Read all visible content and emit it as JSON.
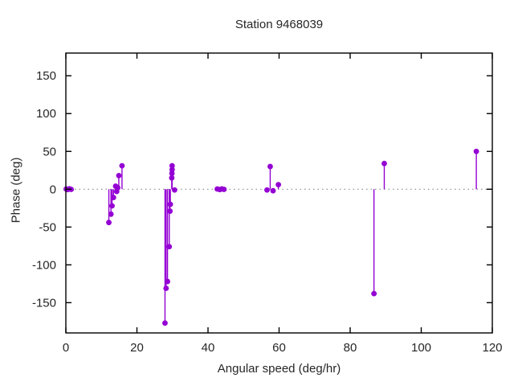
{
  "figure": {
    "title": "Station 9468039"
  },
  "chart_data": {
    "type": "scatter",
    "style": "impulses-with-points",
    "title": "Station 9468039",
    "xlabel": "Angular speed (deg/hr)",
    "ylabel": "Phase (deg)",
    "xlim": [
      0,
      120
    ],
    "ylim": [
      -190,
      180
    ],
    "xticks": [
      0,
      20,
      40,
      60,
      80,
      100,
      120
    ],
    "yticks": [
      -150,
      -100,
      -50,
      0,
      50,
      100,
      150
    ],
    "grid": false,
    "zero_line_dotted": true,
    "legend": "none",
    "colors": {
      "series": "#9400d3",
      "zero_line": "#8a8a8a",
      "axis": "#000000",
      "text": "#262626"
    },
    "points": [
      [
        0.1,
        0.3
      ],
      [
        0.5,
        -0.4
      ],
      [
        1.0,
        0.5
      ],
      [
        1.5,
        -0.2
      ],
      [
        12.1,
        -44
      ],
      [
        12.7,
        -33
      ],
      [
        13.0,
        -22
      ],
      [
        13.4,
        -11
      ],
      [
        14.0,
        4
      ],
      [
        14.3,
        -3
      ],
      [
        14.6,
        2
      ],
      [
        14.9,
        18
      ],
      [
        15.8,
        31
      ],
      [
        27.9,
        -177
      ],
      [
        28.2,
        -131
      ],
      [
        28.6,
        -122
      ],
      [
        29.1,
        -76
      ],
      [
        29.3,
        -29
      ],
      [
        29.4,
        -20
      ],
      [
        29.8,
        15
      ],
      [
        29.85,
        21
      ],
      [
        29.9,
        26
      ],
      [
        29.9,
        31
      ],
      [
        30.6,
        -1
      ],
      [
        42.6,
        0.3
      ],
      [
        43.3,
        -0.4
      ],
      [
        43.9,
        0.4
      ],
      [
        44.5,
        -0.2
      ],
      [
        56.6,
        -1
      ],
      [
        57.5,
        30
      ],
      [
        58.3,
        -2
      ],
      [
        59.8,
        6
      ],
      [
        86.7,
        -138
      ],
      [
        89.6,
        34
      ],
      [
        115.5,
        50
      ]
    ]
  }
}
